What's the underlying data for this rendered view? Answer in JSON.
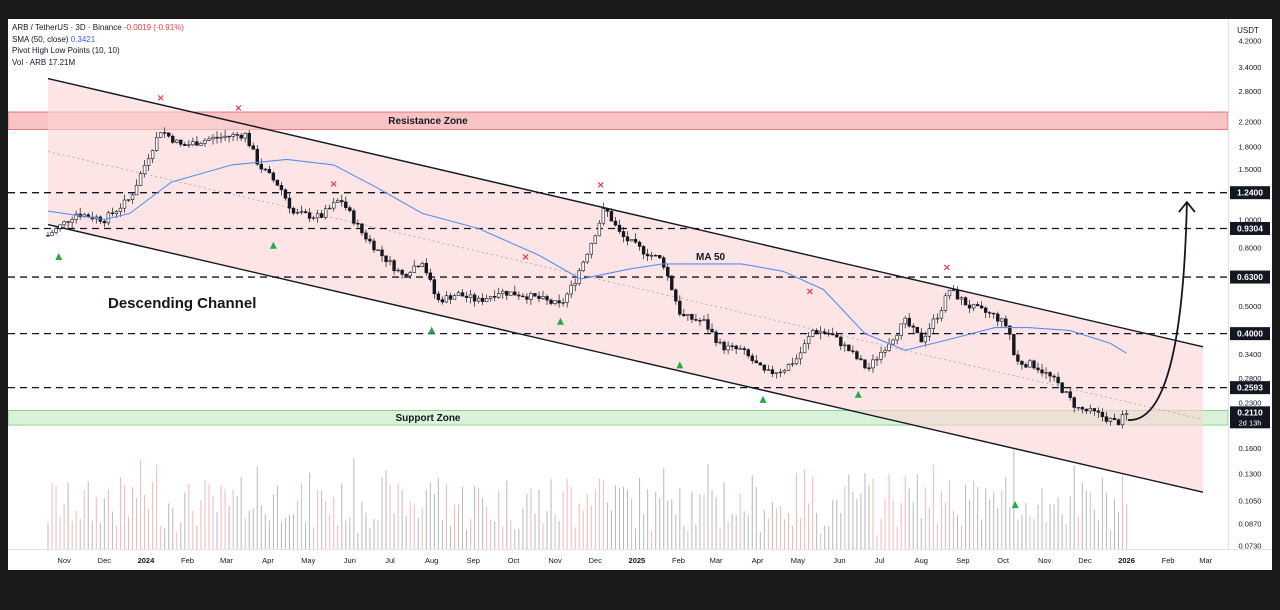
{
  "legend": {
    "title": "ARB / TetherUS · 3D · Binance",
    "change": "-0.0019 (-0.91%)",
    "sma_label": "SMA (50, close)",
    "sma_value": "0.3421",
    "pivot_label": "Pivot High Low Points (10, 10)",
    "vol_label": "Vol · ARB",
    "vol_value": "17.21M"
  },
  "colors": {
    "up": "#089981",
    "down": "#f23645",
    "candle": "#131722",
    "sma": "#5b8def",
    "channel_fill": "#fbd5d5",
    "resistance_fill": "#f9b8b8",
    "support_fill": "#cdeccd",
    "pivot_high": "#f23645",
    "pivot_low": "#22ab47"
  },
  "chart_data": {
    "type": "candlestick",
    "symbol": "ARB / TetherUS",
    "timeframe": "3D",
    "exchange": "Binance",
    "y_unit": "USDT",
    "y_scale": "log",
    "ylim": [
      0.071,
      5.0
    ],
    "price_ticks": [
      "4.2000",
      "3.4000",
      "2.8000",
      "2.2000",
      "1.8000",
      "1.5000",
      "1.2400",
      "1.0000",
      "0.9304",
      "0.8000",
      "0.6300",
      "0.5000",
      "0.4000",
      "0.3400",
      "0.2800",
      "0.2593",
      "0.2300",
      "0.2110",
      "0.1600",
      "0.1300",
      "0.1050",
      "0.0870",
      "0.0730"
    ],
    "x_ticks": [
      "Nov",
      "Dec",
      "2024",
      "Feb",
      "Mar",
      "Apr",
      "May",
      "Jun",
      "Jul",
      "Aug",
      "Sep",
      "Oct",
      "Nov",
      "Dec",
      "2025",
      "Feb",
      "Mar",
      "Apr",
      "May",
      "Jun",
      "Jul",
      "Aug",
      "Sep",
      "Oct",
      "Nov",
      "Dec",
      "2026",
      "Feb",
      "Mar"
    ],
    "close_path": [
      [
        "2023-10-20",
        0.88
      ],
      [
        "2023-11-10",
        1.05
      ],
      [
        "2023-12-01",
        1.0
      ],
      [
        "2023-12-20",
        1.18
      ],
      [
        "2024-01-05",
        1.75
      ],
      [
        "2024-01-12",
        2.05
      ],
      [
        "2024-01-28",
        1.8
      ],
      [
        "2024-02-15",
        1.9
      ],
      [
        "2024-03-01",
        1.95
      ],
      [
        "2024-03-15",
        1.98
      ],
      [
        "2024-03-25",
        1.55
      ],
      [
        "2024-04-10",
        1.3
      ],
      [
        "2024-04-20",
        1.05
      ],
      [
        "2024-05-10",
        1.02
      ],
      [
        "2024-05-25",
        1.18
      ],
      [
        "2024-06-10",
        0.9
      ],
      [
        "2024-06-25",
        0.75
      ],
      [
        "2024-07-10",
        0.64
      ],
      [
        "2024-07-25",
        0.72
      ],
      [
        "2024-08-05",
        0.52
      ],
      [
        "2024-08-20",
        0.55
      ],
      [
        "2024-09-05",
        0.52
      ],
      [
        "2024-09-20",
        0.56
      ],
      [
        "2024-10-05",
        0.55
      ],
      [
        "2024-10-20",
        0.53
      ],
      [
        "2024-11-05",
        0.5
      ],
      [
        "2024-11-15",
        0.6
      ],
      [
        "2024-12-01",
        0.9
      ],
      [
        "2024-12-08",
        1.1
      ],
      [
        "2024-12-20",
        0.88
      ],
      [
        "2025-01-05",
        0.78
      ],
      [
        "2025-01-20",
        0.72
      ],
      [
        "2025-02-03",
        0.46
      ],
      [
        "2025-02-20",
        0.44
      ],
      [
        "2025-03-05",
        0.36
      ],
      [
        "2025-03-20",
        0.35
      ],
      [
        "2025-04-07",
        0.29
      ],
      [
        "2025-04-20",
        0.3
      ],
      [
        "2025-05-01",
        0.33
      ],
      [
        "2025-05-12",
        0.41
      ],
      [
        "2025-05-25",
        0.4
      ],
      [
        "2025-06-08",
        0.35
      ],
      [
        "2025-06-22",
        0.3
      ],
      [
        "2025-07-05",
        0.36
      ],
      [
        "2025-07-20",
        0.44
      ],
      [
        "2025-08-01",
        0.38
      ],
      [
        "2025-08-15",
        0.48
      ],
      [
        "2025-08-22",
        0.57
      ],
      [
        "2025-09-05",
        0.5
      ],
      [
        "2025-09-25",
        0.46
      ],
      [
        "2025-10-05",
        0.42
      ],
      [
        "2025-10-10",
        0.32
      ],
      [
        "2025-10-25",
        0.31
      ],
      [
        "2025-11-10",
        0.27
      ],
      [
        "2025-11-25",
        0.22
      ],
      [
        "2025-12-10",
        0.21
      ],
      [
        "2025-12-25",
        0.195
      ],
      [
        "2026-01-02",
        0.211
      ]
    ],
    "sma50_path": [
      [
        "2023-10-20",
        1.07
      ],
      [
        "2023-12-01",
        1.0
      ],
      [
        "2023-12-20",
        1.05
      ],
      [
        "2024-01-20",
        1.35
      ],
      [
        "2024-03-05",
        1.55
      ],
      [
        "2024-04-15",
        1.62
      ],
      [
        "2024-05-20",
        1.55
      ],
      [
        "2024-06-20",
        1.3
      ],
      [
        "2024-07-25",
        1.05
      ],
      [
        "2024-09-05",
        0.93
      ],
      [
        "2024-10-20",
        0.75
      ],
      [
        "2024-11-20",
        0.62
      ],
      [
        "2024-12-25",
        0.67
      ],
      [
        "2025-01-20",
        0.7
      ],
      [
        "2025-02-20",
        0.7
      ],
      [
        "2025-03-20",
        0.7
      ],
      [
        "2025-04-20",
        0.66
      ],
      [
        "2025-05-20",
        0.57
      ],
      [
        "2025-06-20",
        0.4
      ],
      [
        "2025-07-20",
        0.35
      ],
      [
        "2025-08-20",
        0.38
      ],
      [
        "2025-09-25",
        0.42
      ],
      [
        "2025-10-20",
        0.42
      ],
      [
        "2025-11-20",
        0.41
      ],
      [
        "2025-12-20",
        0.37
      ],
      [
        "2026-01-01",
        0.342
      ]
    ],
    "pivot_highs": [
      [
        "2024-01-12",
        2.65
      ],
      [
        "2024-03-10",
        2.45
      ],
      [
        "2024-05-20",
        1.33
      ],
      [
        "2024-10-10",
        0.74
      ],
      [
        "2024-12-05",
        1.32
      ],
      [
        "2025-05-10",
        0.56
      ],
      [
        "2025-08-20",
        0.68
      ]
    ],
    "pivot_lows": [
      [
        "2023-10-28",
        0.74
      ],
      [
        "2024-04-05",
        0.81
      ],
      [
        "2024-08-01",
        0.41
      ],
      [
        "2024-11-05",
        0.44
      ],
      [
        "2025-02-02",
        0.31
      ],
      [
        "2025-04-05",
        0.235
      ],
      [
        "2025-06-15",
        0.245
      ],
      [
        "2025-10-10",
        0.101
      ]
    ],
    "levels": [
      {
        "label": "1.2400",
        "value": 1.24
      },
      {
        "label": "0.9304",
        "value": 0.9304
      },
      {
        "label": "0.6300",
        "value": 0.63
      },
      {
        "label": "0.4000",
        "value": 0.4
      },
      {
        "label": "0.2593",
        "value": 0.2593
      }
    ],
    "zones": [
      {
        "name": "Resistance Zone",
        "low": 2.06,
        "high": 2.37
      },
      {
        "name": "Support Zone",
        "low": 0.192,
        "high": 0.216
      }
    ],
    "channel": {
      "upper": [
        [
          "2023-10-20",
          3.1
        ],
        [
          "2026-02-27",
          0.36
        ]
      ],
      "lower": [
        [
          "2023-10-20",
          0.96
        ],
        [
          "2026-02-27",
          0.112
        ]
      ]
    },
    "projection": [
      [
        "2026-01-02",
        0.2
      ],
      [
        "2026-01-20",
        0.21
      ],
      [
        "2026-02-15",
        1.15
      ]
    ],
    "current_price": {
      "label": "0.2110",
      "countdown": "2d 13h",
      "value": 0.211
    },
    "annotations": [
      "Descending Channel",
      "MA 50",
      "Resistance Zone",
      "Support Zone"
    ]
  }
}
